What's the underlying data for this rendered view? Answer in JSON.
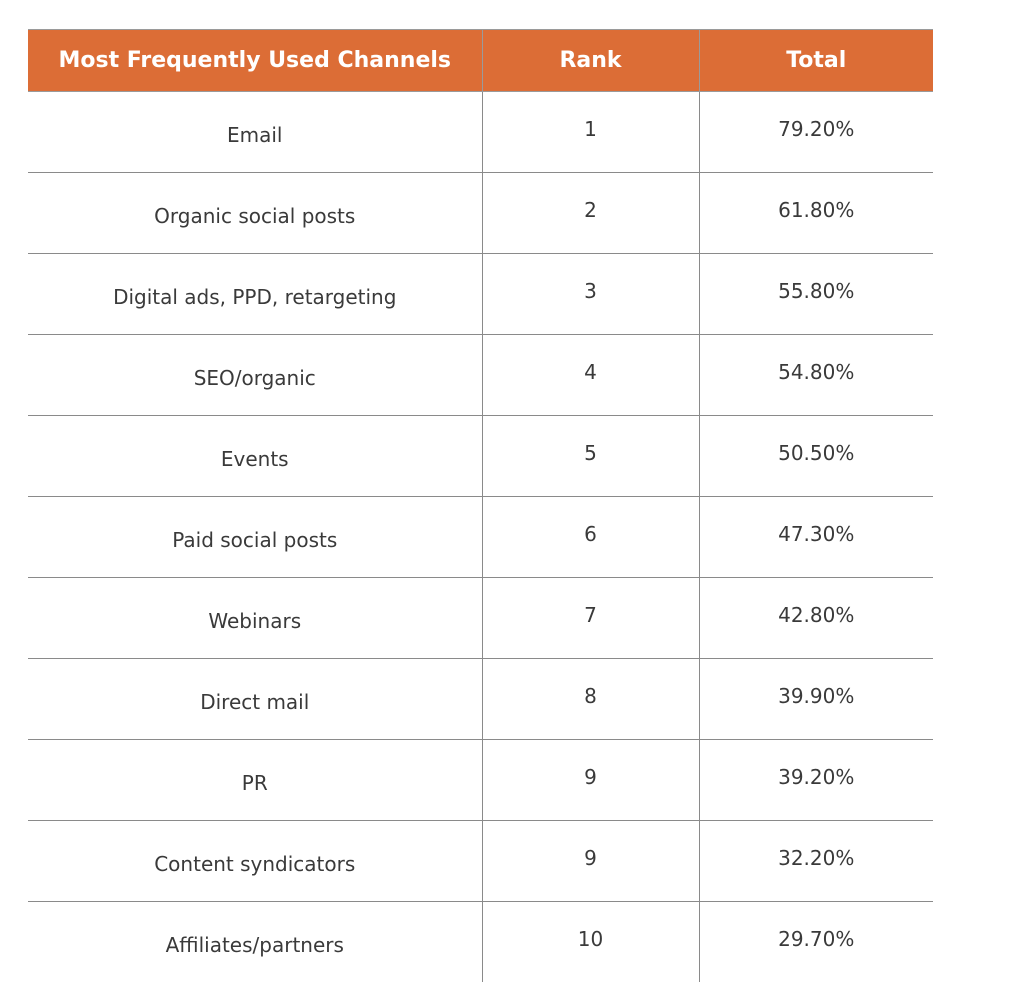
{
  "chart_data": {
    "type": "table",
    "columns": [
      "Most Frequently Used Channels",
      "Rank",
      "Total"
    ],
    "rows": [
      {
        "channel": "Email",
        "rank": "1",
        "total": "79.20%"
      },
      {
        "channel": "Organic social posts",
        "rank": "2",
        "total": "61.80%"
      },
      {
        "channel": "Digital ads, PPD, retargeting",
        "rank": "3",
        "total": "55.80%"
      },
      {
        "channel": "SEO/organic",
        "rank": "4",
        "total": "54.80%"
      },
      {
        "channel": "Events",
        "rank": "5",
        "total": "50.50%"
      },
      {
        "channel": "Paid social posts",
        "rank": "6",
        "total": "47.30%"
      },
      {
        "channel": "Webinars",
        "rank": "7",
        "total": "42.80%"
      },
      {
        "channel": "Direct mail",
        "rank": "8",
        "total": "39.90%"
      },
      {
        "channel": "PR",
        "rank": "9",
        "total": "39.20%"
      },
      {
        "channel": "Content syndicators",
        "rank": "9",
        "total": "32.20%"
      },
      {
        "channel": "Affiliates/partners",
        "rank": "10",
        "total": "29.70%"
      }
    ]
  },
  "colors": {
    "header_background": "#dc6d36",
    "header_text": "#ffffff",
    "body_text": "#3a3a3a",
    "rule": "#8a8a8a"
  }
}
